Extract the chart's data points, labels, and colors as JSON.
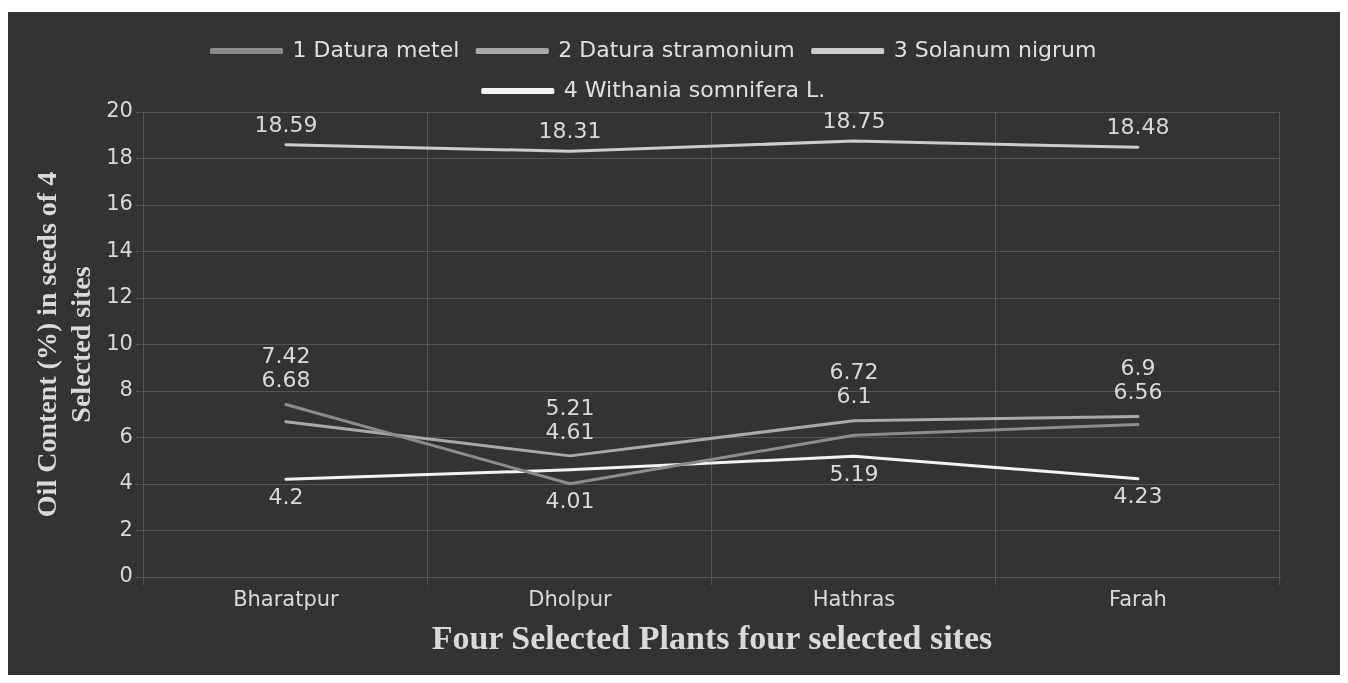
{
  "chart_data": {
    "type": "line",
    "xlabel": "Four Selected Plants four selected sites",
    "ylabel": "Oil Content (%) in seeds of 4 Selected sites",
    "categories": [
      "Bharatpur",
      "Dholpur",
      "Hathras",
      "Farah"
    ],
    "series": [
      {
        "name": "1 Datura metel",
        "color": "#8c8c8c",
        "values": [
          7.42,
          4.01,
          6.1,
          6.56
        ]
      },
      {
        "name": "2 Datura stramonium",
        "color": "#a9a9a9",
        "values": [
          6.68,
          5.21,
          6.72,
          6.9
        ]
      },
      {
        "name": "3 Solanum nigrum",
        "color": "#cccccc",
        "values": [
          18.59,
          18.31,
          18.75,
          18.48
        ]
      },
      {
        "name": "4 Withania somnifera L.",
        "color": "#f2f2f2",
        "values": [
          4.2,
          4.61,
          5.19,
          4.23
        ]
      }
    ],
    "ylim": [
      0,
      20
    ],
    "yticks": [
      0,
      2,
      4,
      6,
      8,
      10,
      12,
      14,
      16,
      18,
      20
    ],
    "grid": true,
    "legend": "top",
    "marker": "none",
    "line_style": "solid",
    "data_labels": true
  }
}
